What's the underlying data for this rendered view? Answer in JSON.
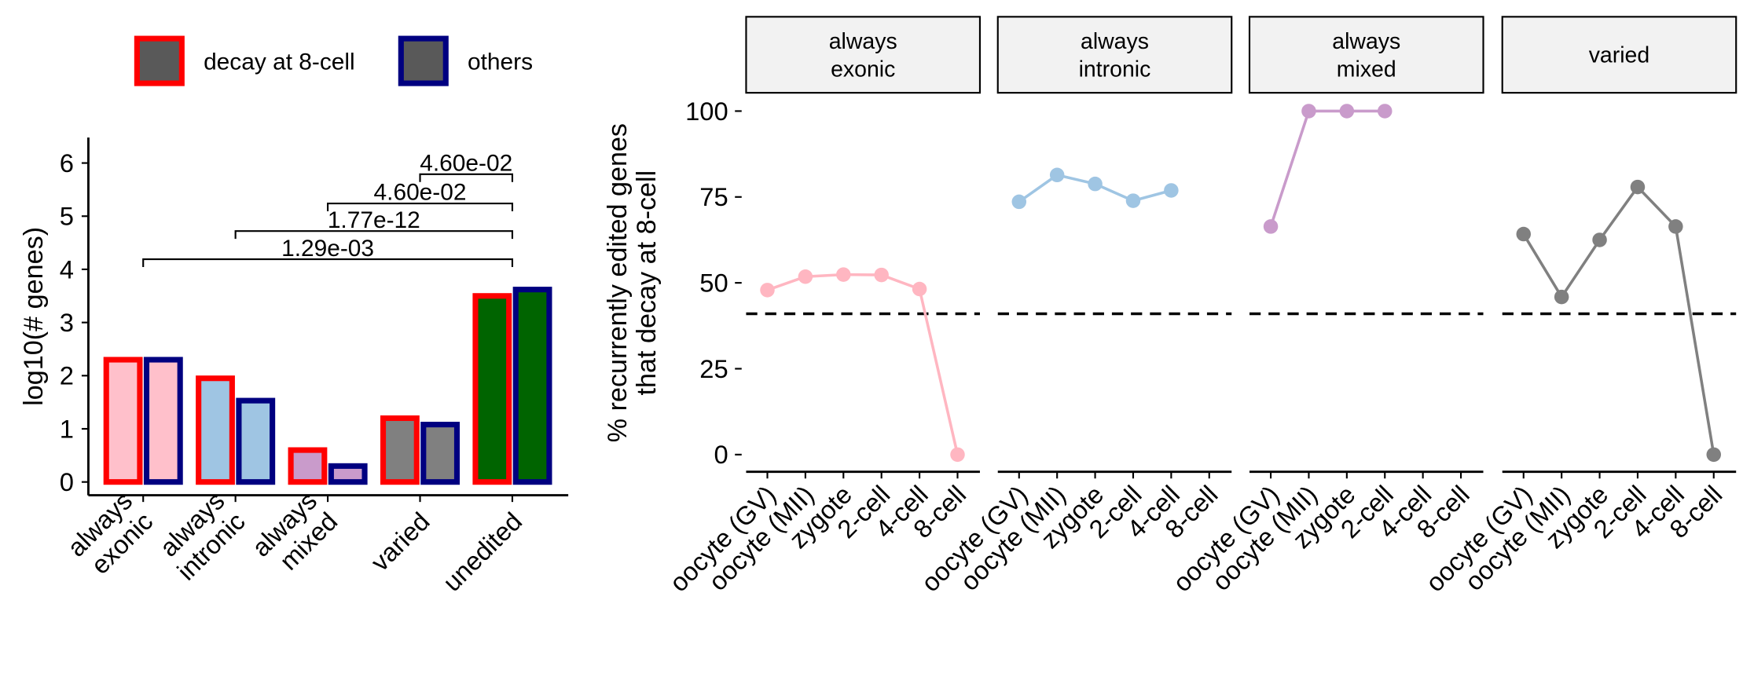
{
  "chart_data": [
    {
      "type": "bar",
      "ylabel": "log10(# genes)",
      "categories": [
        [
          "always",
          "exonic"
        ],
        [
          "always",
          "intronic"
        ],
        [
          "always",
          "mixed"
        ],
        [
          "varied"
        ],
        [
          "unedited"
        ]
      ],
      "category_colors": [
        "#ffc0cb",
        "#9fc5e3",
        "#c99bcb",
        "#808080",
        "#006400"
      ],
      "series": [
        {
          "name": "decay at 8-cell",
          "color": "#ff0000",
          "values": [
            2.3,
            1.95,
            0.6,
            1.2,
            3.5
          ]
        },
        {
          "name": "others",
          "color": "#000080",
          "values": [
            2.3,
            1.53,
            0.3,
            1.08,
            3.62
          ]
        }
      ],
      "legend_fill": "#595959",
      "ylim": [
        -0.25,
        6.48
      ],
      "yticks": [
        0,
        1,
        2,
        3,
        4,
        5,
        6
      ],
      "comparisons": [
        {
          "label": "1.29e-03",
          "y": 4.19,
          "from": 0,
          "to": 4
        },
        {
          "label": "1.77e-12",
          "y": 4.72,
          "from": 1,
          "to": 4
        },
        {
          "label": "4.60e-02",
          "y": 5.24,
          "from": 2,
          "to": 4
        },
        {
          "label": "4.60e-02",
          "y": 5.79,
          "from": 3,
          "to": 4
        }
      ]
    },
    {
      "type": "line",
      "ylabel": [
        "% recurrently edited genes",
        "that decay at 8-cell"
      ],
      "categories": [
        "oocyte (GV)",
        "oocyte (MII)",
        "zygote",
        "2-cell",
        "4-cell",
        "8-cell"
      ],
      "ylim": [
        -5,
        105
      ],
      "yticks": [
        0,
        25,
        50,
        75,
        100
      ],
      "hline": 41,
      "panels": [
        {
          "strip": [
            "always",
            "exonic"
          ],
          "color": "#ffb6c1",
          "values": [
            47.9,
            51.8,
            52.4,
            52.3,
            48.2,
            0
          ]
        },
        {
          "strip": [
            "always",
            "intronic"
          ],
          "color": "#9fc5e3",
          "values": [
            73.6,
            81.4,
            78.8,
            73.9,
            76.9,
            null
          ]
        },
        {
          "strip": [
            "always",
            "mixed"
          ],
          "color": "#c99bcb",
          "values": [
            66.4,
            100,
            100,
            100,
            null,
            null
          ]
        },
        {
          "strip": [
            "varied"
          ],
          "color": "#808080",
          "values": [
            64.2,
            45.9,
            62.5,
            77.9,
            66.4,
            0
          ]
        }
      ]
    }
  ]
}
